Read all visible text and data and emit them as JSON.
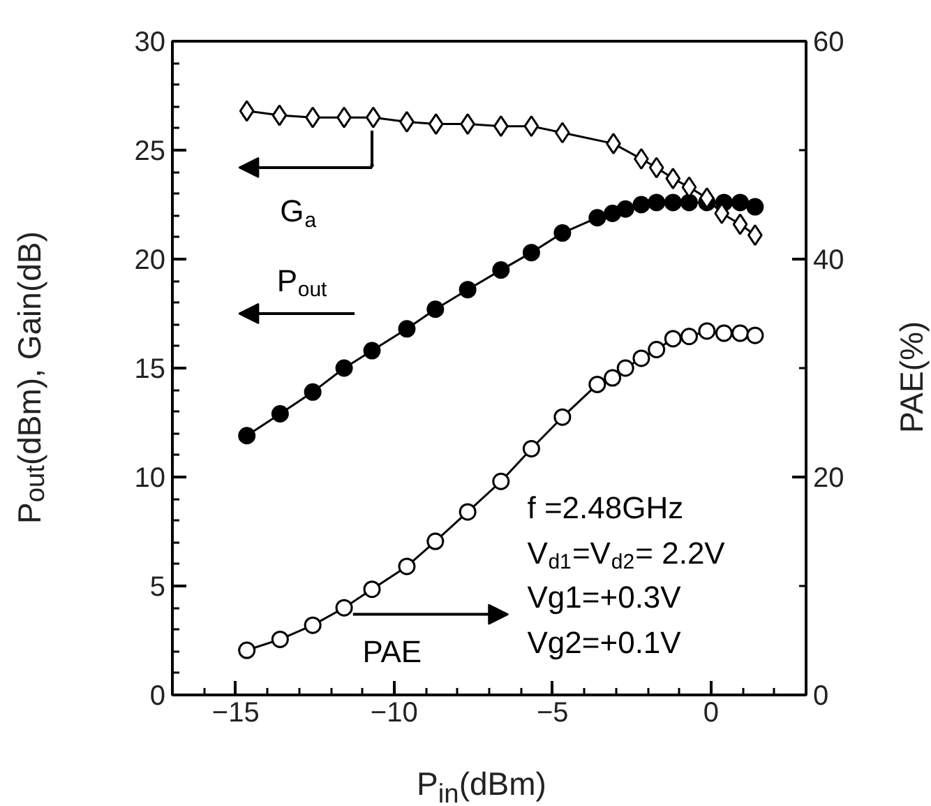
{
  "chart_data": {
    "type": "line",
    "xlabel": "P$_{in}$(dBm)",
    "ylabel": "P$_{out}$(dBm), Gain(dB)",
    "y2label": "PAE(%)",
    "xlim": [
      -17,
      3
    ],
    "xticks": [
      -15,
      -10,
      -5,
      0
    ],
    "ylim": [
      0,
      30
    ],
    "yticks": [
      0,
      5,
      10,
      15,
      20,
      25,
      30
    ],
    "y2lim": [
      0,
      60
    ],
    "y2ticks": [
      0,
      20,
      40,
      60
    ],
    "grid": false,
    "line_style": "solid",
    "series": [
      {
        "color": "#000000",
        "marker": "diamond",
        "x": [
          -14.65,
          -13.62,
          -12.57,
          -11.58,
          -10.66,
          -9.6,
          -8.68,
          -7.68,
          -6.63,
          -5.67,
          -4.69,
          -3.08,
          -2.2,
          -1.72,
          -1.2,
          -0.69,
          -0.13,
          0.34,
          0.92,
          1.39
        ],
        "values": [
          26.8,
          26.6,
          26.5,
          26.5,
          26.5,
          26.3,
          26.2,
          26.2,
          26.1,
          26.1,
          25.8,
          25.3,
          24.6,
          24.2,
          23.7,
          23.3,
          22.8,
          22.1,
          21.6,
          21.1
        ]
      },
      {
        "color": "#000000",
        "marker": "circle",
        "x": [
          -14.65,
          -13.6,
          -12.57,
          -11.58,
          -10.7,
          -9.6,
          -8.7,
          -7.68,
          -6.63,
          -5.67,
          -4.69,
          -3.59,
          -3.11,
          -2.7,
          -2.2,
          -1.72,
          -1.2,
          -0.69,
          -0.13,
          0.41,
          0.92,
          1.39
        ],
        "values": [
          11.9,
          12.9,
          13.9,
          15.0,
          15.8,
          16.8,
          17.7,
          18.6,
          19.5,
          20.3,
          21.2,
          21.9,
          22.1,
          22.3,
          22.5,
          22.6,
          22.6,
          22.6,
          22.6,
          22.6,
          22.6,
          22.4
        ]
      },
      {
        "color": "#000000",
        "marker": "circle",
        "axis": "y2",
        "x": [
          -14.65,
          -13.6,
          -12.57,
          -11.58,
          -10.7,
          -9.6,
          -8.7,
          -7.68,
          -6.63,
          -5.67,
          -4.69,
          -3.59,
          -3.11,
          -2.7,
          -2.2,
          -1.72,
          -1.2,
          -0.69,
          -0.13,
          0.41,
          0.92,
          1.39
        ],
        "values": [
          4.1,
          5.1,
          6.4,
          8.0,
          9.7,
          11.8,
          14.1,
          16.8,
          19.6,
          22.6,
          25.5,
          28.5,
          29.1,
          30.0,
          30.9,
          31.7,
          32.7,
          32.9,
          33.4,
          33.2,
          33.2,
          33.0
        ]
      }
    ],
    "annotations": [
      "G$_{a}$",
      "P$_{out}$",
      "PAE",
      "f  =2.48GHz",
      "V$_{d1}$=V$_{d2}$=  2.2V",
      "Vg1=+0.3V",
      "Vg2=+0.1V"
    ]
  }
}
